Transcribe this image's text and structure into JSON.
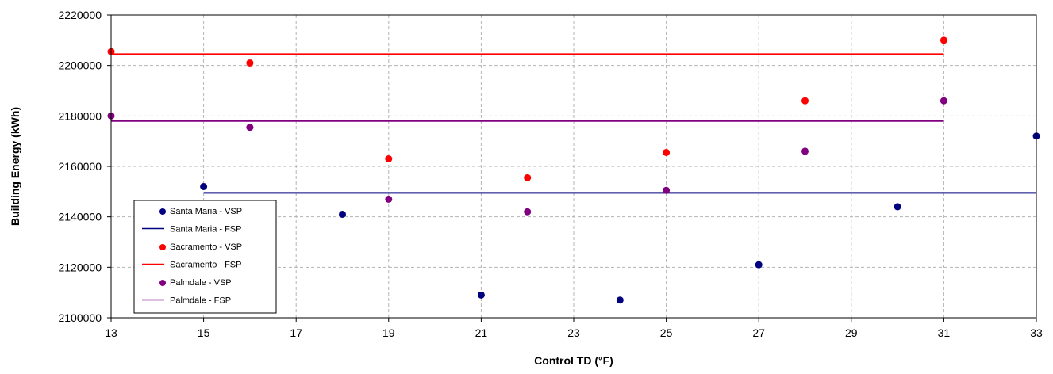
{
  "chart_data": {
    "type": "scatter",
    "xlabel": "Control TD (°F)",
    "ylabel": "Building Energy (kWh)",
    "xlim": [
      13,
      33
    ],
    "ylim": [
      2100000,
      2220000
    ],
    "x_ticks": [
      "13",
      "15",
      "17",
      "19",
      "21",
      "23",
      "25",
      "27",
      "29",
      "31",
      "33"
    ],
    "y_ticks": [
      "2100000",
      "2120000",
      "2140000",
      "2160000",
      "2180000",
      "2200000",
      "2220000"
    ],
    "grid": true,
    "legend_position": "bottom-left",
    "series": [
      {
        "name": "Santa Maria - VSP",
        "kind": "scatter",
        "color": "#000080",
        "x": [
          15,
          18,
          21,
          24,
          27,
          30,
          33
        ],
        "y": [
          2152000,
          2141000,
          2109000,
          2107000,
          2121000,
          2144000,
          2172000
        ]
      },
      {
        "name": "Santa Maria - FSP",
        "kind": "line",
        "color": "#000080",
        "x": [
          15,
          33
        ],
        "y": [
          2149500,
          2149500
        ]
      },
      {
        "name": "Sacramento - VSP",
        "kind": "scatter",
        "color": "#ff0000",
        "x": [
          13,
          16,
          19,
          22,
          25,
          28,
          31
        ],
        "y": [
          2205500,
          2201000,
          2163000,
          2155500,
          2165500,
          2186000,
          2210000
        ]
      },
      {
        "name": "Sacramento - FSP",
        "kind": "line",
        "color": "#ff0000",
        "x": [
          13,
          31
        ],
        "y": [
          2204500,
          2204500
        ]
      },
      {
        "name": "Palmdale - VSP",
        "kind": "scatter",
        "color": "#800080",
        "x": [
          13,
          16,
          19,
          22,
          25,
          28,
          31
        ],
        "y": [
          2180000,
          2175500,
          2147000,
          2142000,
          2150500,
          2166000,
          2186000
        ]
      },
      {
        "name": "Palmdale - FSP",
        "kind": "line",
        "color": "#800080",
        "x": [
          13,
          31
        ],
        "y": [
          2178000,
          2178000
        ]
      }
    ]
  }
}
